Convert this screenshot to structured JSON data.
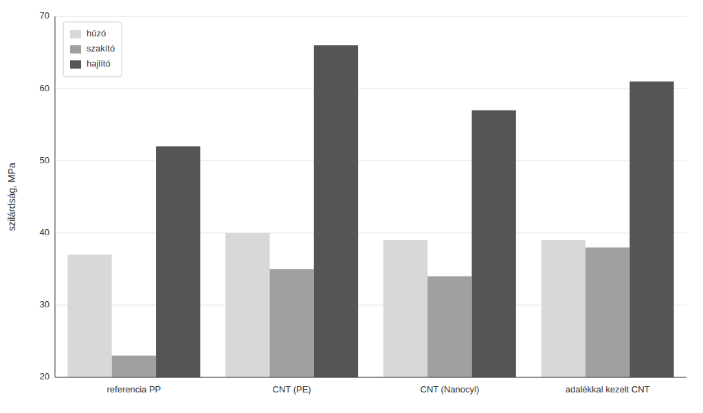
{
  "chart_data": {
    "type": "bar",
    "categories": [
      "referencia PP",
      "CNT (PE)",
      "CNT (Nanocyl)",
      "adalékkal kezelt CNT"
    ],
    "series": [
      {
        "name": "húzó",
        "color": "#d8d8d8",
        "values": [
          37,
          40,
          39,
          39
        ]
      },
      {
        "name": "szakító",
        "color": "#a0a0a0",
        "values": [
          23,
          35,
          34,
          38
        ]
      },
      {
        "name": "hajlító",
        "color": "#555555",
        "values": [
          52,
          66,
          57,
          61
        ]
      }
    ],
    "ylabel": "szilárdság, MPa",
    "ylim": [
      20,
      70
    ],
    "yticks": [
      20,
      30,
      40,
      50,
      60,
      70
    ],
    "grid": true,
    "legend": "upper left"
  }
}
